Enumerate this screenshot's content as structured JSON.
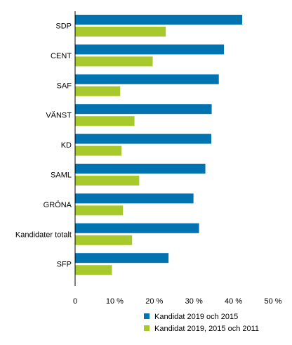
{
  "chart_data": {
    "type": "bar",
    "orientation": "horizontal",
    "categories": [
      "SDP",
      "CENT",
      "SAF",
      "VÄNST",
      "KD",
      "SAML",
      "GRÖNA",
      "Kandidater totalt",
      "SFP"
    ],
    "series": [
      {
        "name": "Kandidat 2019 och 2015",
        "color": "#0073b0",
        "values": [
          42.2,
          37.6,
          36.3,
          34.5,
          34.4,
          32.9,
          29.9,
          31.3,
          23.6
        ]
      },
      {
        "name": "Kandidat 2019, 2015 och 2011",
        "color": "#a8c92b",
        "values": [
          22.9,
          19.6,
          11.4,
          15.0,
          11.7,
          16.2,
          12.1,
          14.4,
          9.3
        ]
      }
    ],
    "xlim": [
      0,
      50
    ],
    "xticks": [
      0,
      10,
      20,
      30,
      40,
      50
    ],
    "xtick_labels": [
      "0",
      "10 %",
      "20 %",
      "30 %",
      "40 %",
      "50 %"
    ],
    "legend_position": "bottom-right",
    "grid": false
  }
}
